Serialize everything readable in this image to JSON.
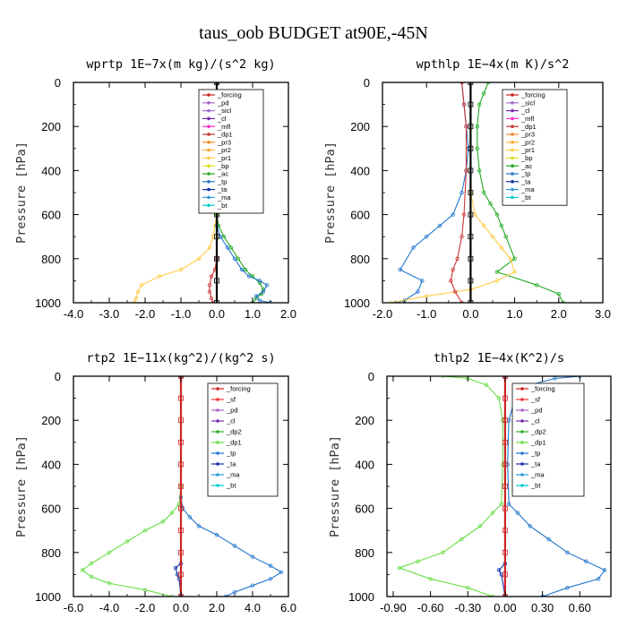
{
  "figure": {
    "title": "taus_oob  BUDGET at90E,-45N"
  },
  "colors": {
    "forcing": "#cc2222",
    "pd": "#aa66cc",
    "sicl": "#a06ad0",
    "cl": "#7a2cb0",
    "mfl": "#ff33cc",
    "dp1": "#cc3333",
    "dp2": "#33aa33",
    "pr3": "#ee8822",
    "pr2": "#ffaa33",
    "pr1": "#ffcc44",
    "bp": "#dddd22",
    "ac": "#22aa22",
    "tp": "#2277cc",
    "ta": "#1133aa",
    "ma": "#3399dd",
    "bt": "#00cccc",
    "sf": "#ee3333",
    "dp1g": "#66dd44",
    "bt_line": "#000000"
  },
  "chart_data": [
    {
      "type": "line",
      "title": "wprtp  1E−7x(m kg)/(s^2 kg)",
      "ylabel": "Pressure [hPa]",
      "xlim": [
        -4.0,
        2.0
      ],
      "ylim": [
        1000,
        0
      ],
      "xticks": [
        "-4.0",
        "-3.0",
        "-2.0",
        "-1.0",
        "0.0",
        "1.0",
        "2.0"
      ],
      "yticks": [
        "0",
        "200",
        "400",
        "600",
        "800",
        "1000"
      ],
      "legend": [
        "_forcing",
        "_pd",
        "_sicl",
        "_cl",
        "_mfl",
        "_dp1",
        "_pr3",
        "_pr2",
        "_pr1",
        "_bp",
        "_ac",
        "_tp",
        "_ta",
        "_ma",
        "_bt"
      ],
      "series": [
        {
          "name": "_pr1",
          "color": "#ffcc44",
          "x": [
            0.0,
            0.0,
            0.0,
            -0.05,
            -0.1,
            -0.2,
            -0.5,
            -1.0,
            -1.6,
            -2.1,
            -2.2,
            -2.25,
            -2.3
          ],
          "y": [
            0,
            200,
            600,
            650,
            700,
            750,
            800,
            850,
            880,
            920,
            950,
            980,
            1000
          ]
        },
        {
          "name": "_ac",
          "color": "#22aa22",
          "x": [
            0.0,
            0.0,
            0.05,
            0.2,
            0.4,
            0.6,
            0.8,
            1.0,
            1.2,
            1.3,
            1.25,
            1.1,
            1.0
          ],
          "y": [
            0,
            600,
            650,
            700,
            750,
            800,
            850,
            880,
            910,
            940,
            960,
            980,
            1000
          ]
        },
        {
          "name": "_tp",
          "color": "#2277cc",
          "x": [
            0.0,
            0.0,
            0.1,
            0.3,
            0.5,
            0.7,
            0.9,
            1.2,
            1.4,
            1.3,
            1.1,
            1.2,
            1.5
          ],
          "y": [
            0,
            650,
            700,
            750,
            800,
            850,
            880,
            900,
            920,
            950,
            970,
            990,
            1000
          ]
        },
        {
          "name": "_dp1",
          "color": "#cc3333",
          "x": [
            0.0,
            0.0,
            -0.05,
            -0.15,
            -0.2,
            -0.2,
            -0.15,
            -0.1
          ],
          "y": [
            0,
            800,
            850,
            880,
            920,
            950,
            980,
            1000
          ]
        },
        {
          "name": "_bt",
          "color": "#000000",
          "x": [
            0.0,
            0.0,
            0.0,
            0.0,
            0.0,
            0.0,
            0.0,
            0.0,
            0.0,
            0.0,
            0.0
          ],
          "y": [
            0,
            100,
            200,
            300,
            400,
            500,
            600,
            700,
            800,
            900,
            1000
          ]
        }
      ]
    },
    {
      "type": "line",
      "title": "wpthlp  1E−4x(m K)/s^2",
      "ylabel": "Pressure [hPa]",
      "xlim": [
        -2.0,
        3.0
      ],
      "ylim": [
        1000,
        0
      ],
      "xticks": [
        "-2.0",
        "-1.0",
        "0.0",
        "1.0",
        "2.0",
        "3.0"
      ],
      "yticks": [
        "0",
        "200",
        "400",
        "600",
        "800",
        "1000"
      ],
      "legend": [
        "_forcing",
        "_sicl",
        "_cl",
        "_mfl",
        "_dp1",
        "_pr3",
        "_pr2",
        "_pr1",
        "_bp",
        "_ac",
        "_tp",
        "_ta",
        "_ma",
        "_bt"
      ],
      "series": [
        {
          "name": "_ac",
          "color": "#22aa22",
          "x": [
            0.4,
            0.3,
            0.2,
            0.15,
            0.15,
            0.2,
            0.3,
            0.45,
            0.6,
            0.7,
            0.8,
            1.0,
            0.6,
            1.5,
            2.0,
            2.1
          ],
          "y": [
            0,
            50,
            100,
            200,
            300,
            400,
            500,
            550,
            600,
            650,
            700,
            800,
            860,
            920,
            960,
            1000
          ]
        },
        {
          "name": "_tp",
          "color": "#2277cc",
          "x": [
            -0.2,
            -0.15,
            -0.1,
            -0.05,
            -0.1,
            -0.2,
            -0.4,
            -0.7,
            -1.0,
            -1.3,
            -1.6,
            -1.1,
            -1.2,
            -1.5,
            -1.7
          ],
          "y": [
            0,
            100,
            200,
            300,
            400,
            500,
            600,
            650,
            700,
            750,
            850,
            900,
            950,
            990,
            1000
          ]
        },
        {
          "name": "_pr1",
          "color": "#ffcc44",
          "x": [
            0.0,
            0.0,
            0.1,
            0.3,
            0.5,
            0.7,
            0.9,
            1.0,
            0.6,
            0.0,
            -1.0,
            -1.8
          ],
          "y": [
            0,
            500,
            600,
            650,
            700,
            750,
            800,
            860,
            900,
            940,
            970,
            1000
          ]
        },
        {
          "name": "_dp1",
          "color": "#cc3333",
          "x": [
            -0.2,
            -0.15,
            -0.1,
            -0.1,
            -0.15,
            -0.2,
            -0.3,
            -0.4,
            -0.45,
            -0.35,
            -0.2
          ],
          "y": [
            0,
            100,
            200,
            400,
            600,
            700,
            800,
            850,
            900,
            950,
            1000
          ]
        },
        {
          "name": "_bt",
          "color": "#000000",
          "x": [
            0.0,
            0.0,
            0.0,
            0.0,
            0.0,
            0.0,
            0.0,
            0.0,
            0.0,
            0.0,
            0.0
          ],
          "y": [
            0,
            100,
            200,
            300,
            400,
            500,
            600,
            700,
            800,
            900,
            1000
          ]
        }
      ]
    },
    {
      "type": "line",
      "title": "rtp2  1E−11x(kg^2)/(kg^2 s)",
      "ylabel": "Pressure [hPa]",
      "xlim": [
        -6.0,
        6.0
      ],
      "ylim": [
        1000,
        0
      ],
      "xticks": [
        "-6.0",
        "-4.0",
        "-2.0",
        "0.0",
        "2.0",
        "4.0",
        "6.0"
      ],
      "yticks": [
        "0",
        "200",
        "400",
        "600",
        "800",
        "1000"
      ],
      "legend": [
        "_forcing",
        "_sf",
        "_pd",
        "_cl",
        "_dp2",
        "_dp1",
        "_tp",
        "_ta",
        "_ma",
        "_bt"
      ],
      "series": [
        {
          "name": "_dp1",
          "color": "#66dd44",
          "x": [
            0.0,
            0.0,
            -0.1,
            -0.5,
            -1.0,
            -2.0,
            -3.0,
            -4.0,
            -5.0,
            -5.5,
            -5.0,
            -4.0,
            -2.0,
            -0.5
          ],
          "y": [
            0,
            500,
            580,
            620,
            660,
            700,
            750,
            800,
            850,
            880,
            910,
            940,
            970,
            1000
          ]
        },
        {
          "name": "_tp",
          "color": "#2277cc",
          "x": [
            0.0,
            0.0,
            0.1,
            0.5,
            1.0,
            2.0,
            3.0,
            4.0,
            5.0,
            5.6,
            5.0,
            4.0,
            3.0,
            2.5
          ],
          "y": [
            0,
            550,
            600,
            640,
            680,
            720,
            770,
            820,
            860,
            890,
            920,
            950,
            980,
            1000
          ]
        },
        {
          "name": "_ta",
          "color": "#1133aa",
          "x": [
            0.0,
            0.0,
            -0.3,
            -0.2,
            -0.1,
            0.0
          ],
          "y": [
            0,
            850,
            870,
            900,
            920,
            1000
          ]
        },
        {
          "name": "_bt",
          "color": "#cc2222",
          "x": [
            0.0,
            0.0,
            0.0,
            0.0,
            0.0,
            0.0,
            0.0,
            0.0,
            0.0,
            0.0,
            0.0
          ],
          "y": [
            0,
            100,
            200,
            300,
            400,
            500,
            600,
            700,
            800,
            900,
            1000
          ]
        }
      ]
    },
    {
      "type": "line",
      "title": "thlp2  1E−4x(K^2)/s",
      "ylabel": "Pressure [hPa]",
      "xlim": [
        -0.95,
        0.85
      ],
      "ylim": [
        1000,
        0
      ],
      "xticks": [
        "-0.90",
        "-0.60",
        "-0.30",
        "0.00",
        "0.30",
        "0.60"
      ],
      "xtick_values": [
        -0.9,
        -0.6,
        -0.3,
        0.0,
        0.3,
        0.6
      ],
      "yticks": [
        "0",
        "200",
        "400",
        "600",
        "800",
        "1000"
      ],
      "legend": [
        "_forcing",
        "_sf",
        "_pd",
        "_cl",
        "_dp2",
        "_dp1",
        "_tp",
        "_ta",
        "_ma",
        "_bt"
      ],
      "series": [
        {
          "name": "_dp1",
          "color": "#66dd44",
          "x": [
            -0.5,
            -0.3,
            -0.15,
            -0.05,
            -0.02,
            -0.02,
            -0.03,
            -0.1,
            -0.2,
            -0.35,
            -0.5,
            -0.7,
            -0.85,
            -0.6,
            -0.3,
            -0.1
          ],
          "y": [
            0,
            10,
            40,
            100,
            200,
            400,
            580,
            620,
            680,
            740,
            800,
            840,
            870,
            920,
            960,
            1000
          ]
        },
        {
          "name": "_tp",
          "color": "#2277cc",
          "x": [
            0.6,
            0.4,
            0.2,
            0.08,
            0.03,
            0.02,
            0.03,
            0.1,
            0.2,
            0.35,
            0.5,
            0.65,
            0.8,
            0.75,
            0.5,
            0.3
          ],
          "y": [
            0,
            10,
            40,
            100,
            200,
            400,
            580,
            620,
            680,
            740,
            800,
            840,
            880,
            920,
            960,
            1000
          ]
        },
        {
          "name": "_ta",
          "color": "#1133aa",
          "x": [
            0.0,
            0.0,
            -0.05,
            -0.03,
            0.0
          ],
          "y": [
            0,
            850,
            880,
            900,
            1000
          ]
        },
        {
          "name": "_bt",
          "color": "#cc2222",
          "x": [
            0.0,
            0.0,
            0.0,
            0.0,
            0.0,
            0.0,
            0.0,
            0.0,
            0.0,
            0.0,
            0.0
          ],
          "y": [
            0,
            100,
            200,
            300,
            400,
            500,
            600,
            700,
            800,
            900,
            1000
          ]
        }
      ]
    }
  ]
}
